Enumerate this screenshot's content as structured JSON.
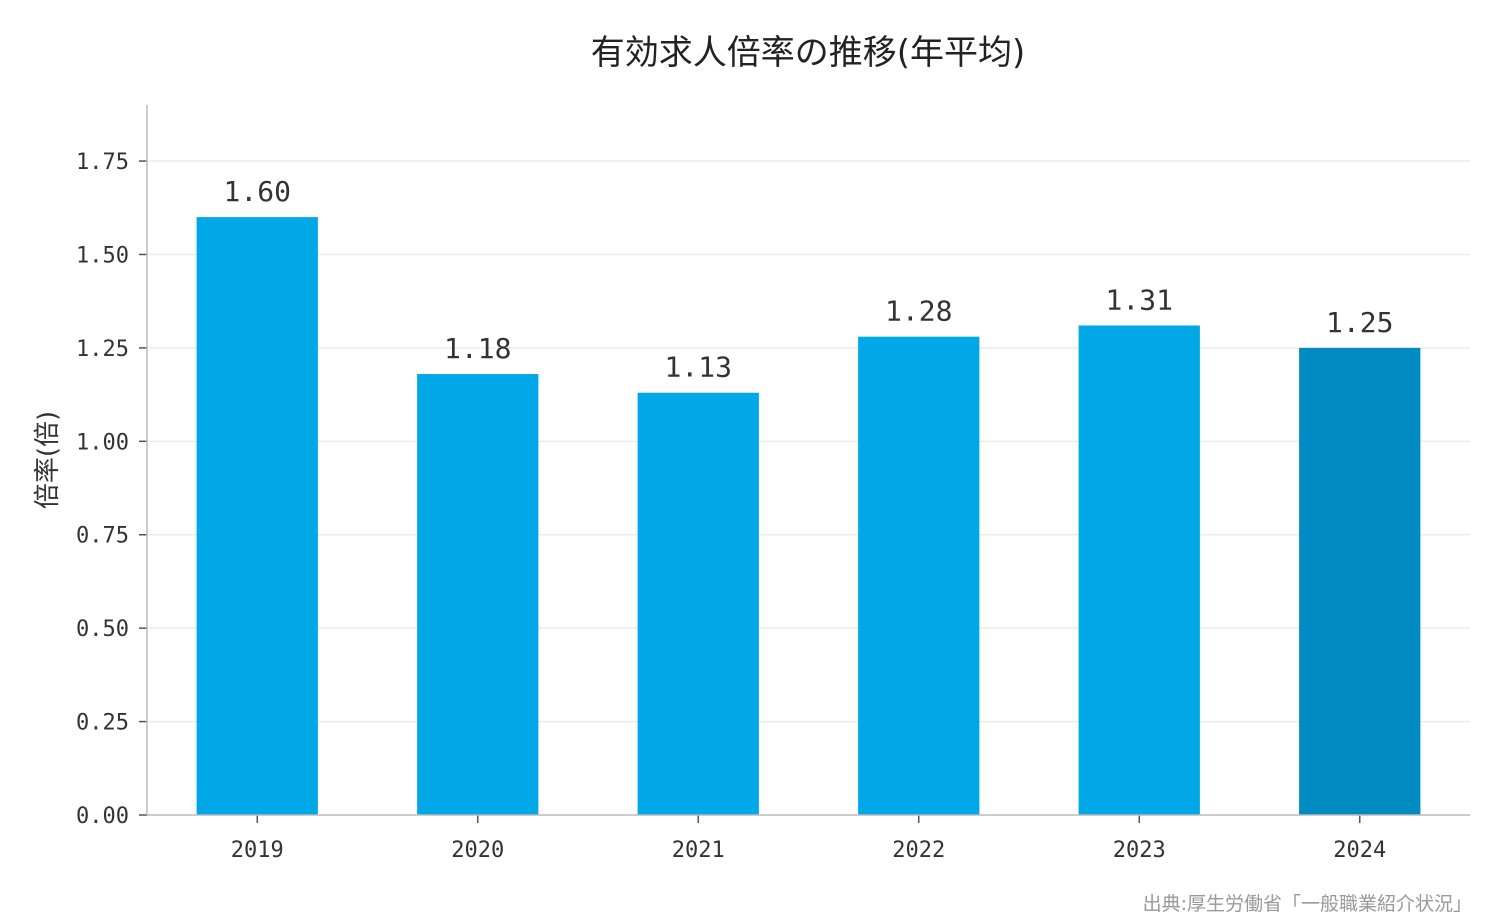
{
  "chart_data": {
    "type": "bar",
    "title": "有効求人倍率の推移(年平均)",
    "ylabel": "倍率(倍)",
    "xlabel": "",
    "categories": [
      "2019",
      "2020",
      "2021",
      "2022",
      "2023",
      "2024"
    ],
    "values": [
      1.6,
      1.18,
      1.13,
      1.28,
      1.31,
      1.25
    ],
    "value_labels": [
      "1.60",
      "1.18",
      "1.13",
      "1.28",
      "1.31",
      "1.25"
    ],
    "yticks": [
      0.0,
      0.25,
      0.5,
      0.75,
      1.0,
      1.25,
      1.5,
      1.75
    ],
    "ytick_labels": [
      "0.00",
      "0.25",
      "0.50",
      "0.75",
      "1.00",
      "1.25",
      "1.50",
      "1.75"
    ],
    "ylim": [
      0,
      1.9
    ],
    "grid": true,
    "colors": {
      "bar": "#00a8e8",
      "highlight_bar": "#008ac2"
    },
    "highlight_index": 5,
    "source": "出典:厚生労働省「一般職業紹介状況」"
  }
}
